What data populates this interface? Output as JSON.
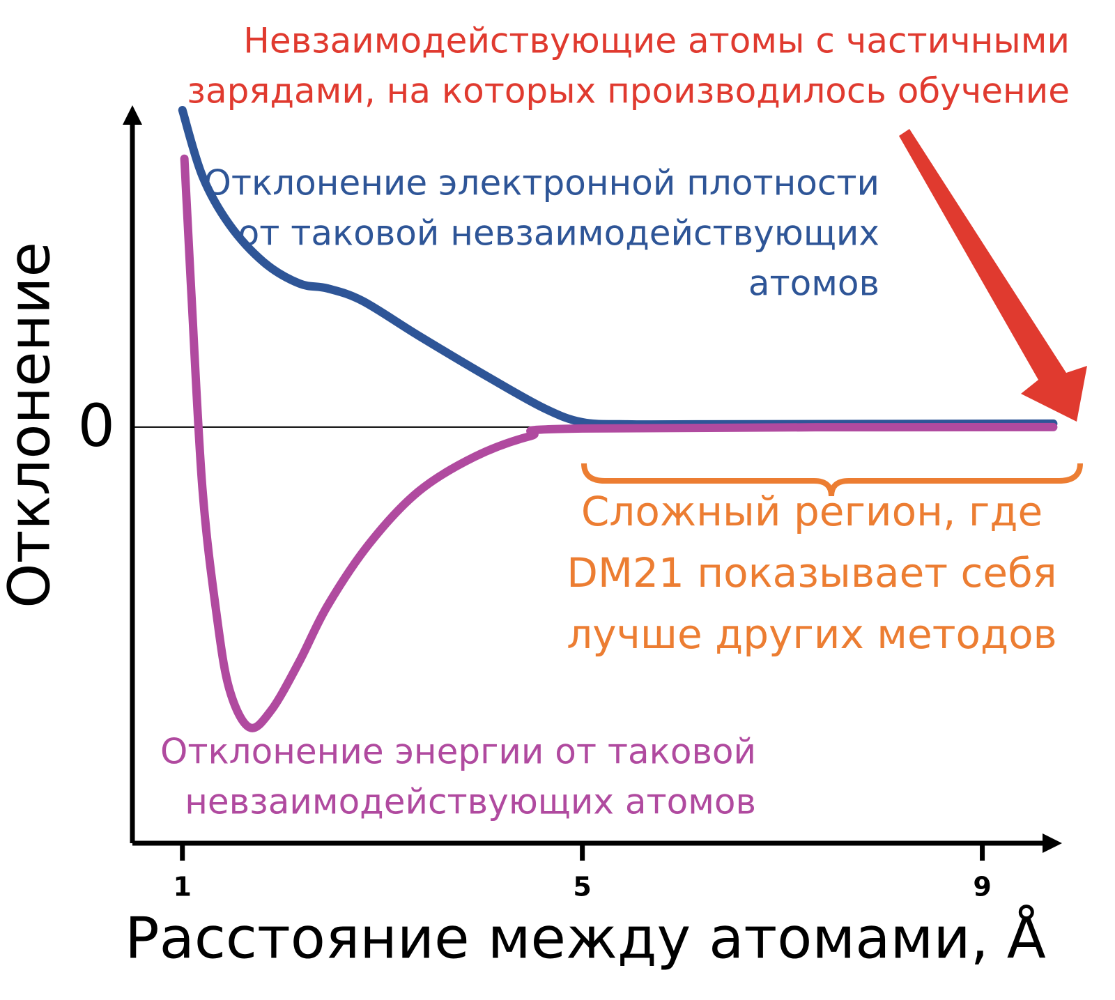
{
  "chart_data": {
    "type": "line",
    "x_label": "Расстояние между атомами, Å",
    "y_label": "Отклонение",
    "xlim": [
      0.5,
      9.7
    ],
    "xticks": [
      1,
      5,
      9
    ],
    "ylim": [
      -6,
      4.5
    ],
    "yticks": [
      0
    ],
    "series": [
      {
        "name": [
          "Отклонение электронной плотности",
          "от таковой невзаимодействующих",
          "атомов"
        ],
        "color": "#2e5597",
        "x": [
          1,
          1.2,
          1.47,
          1.82,
          2.17,
          2.45,
          2.8,
          3.36,
          4.06,
          4.62,
          5.0,
          5.45,
          6.15,
          9.71
        ],
        "values": [
          4.57,
          3.62,
          2.92,
          2.37,
          2.07,
          2.0,
          1.82,
          1.32,
          0.72,
          0.27,
          0.07,
          0.04,
          0.04,
          0.05
        ]
      },
      {
        "name": [
          "Отклонение энергии от таковой",
          "невзаимодействующих атомов"
        ],
        "color": "#b04a9f",
        "x": [
          1.02,
          1.09,
          1.2,
          1.34,
          1.47,
          1.67,
          1.89,
          2.17,
          2.45,
          2.87,
          3.36,
          3.92,
          4.48,
          5.0,
          9.71
        ],
        "values": [
          3.87,
          1.92,
          -0.88,
          -2.68,
          -3.78,
          -4.33,
          -4.08,
          -3.38,
          -2.58,
          -1.68,
          -0.93,
          -0.43,
          -0.13,
          -0.02,
          0
        ]
      }
    ],
    "annotations": [
      {
        "text": [
          "Невзаимодействующие атомы с частичными",
          "зарядами, на которых производилось обучение"
        ],
        "color": "#e03a2f"
      },
      {
        "text": [
          "Сложный регион, где",
          "DM21 показывает себя",
          "лучше других методов"
        ],
        "color": "#ec7d32"
      }
    ]
  }
}
